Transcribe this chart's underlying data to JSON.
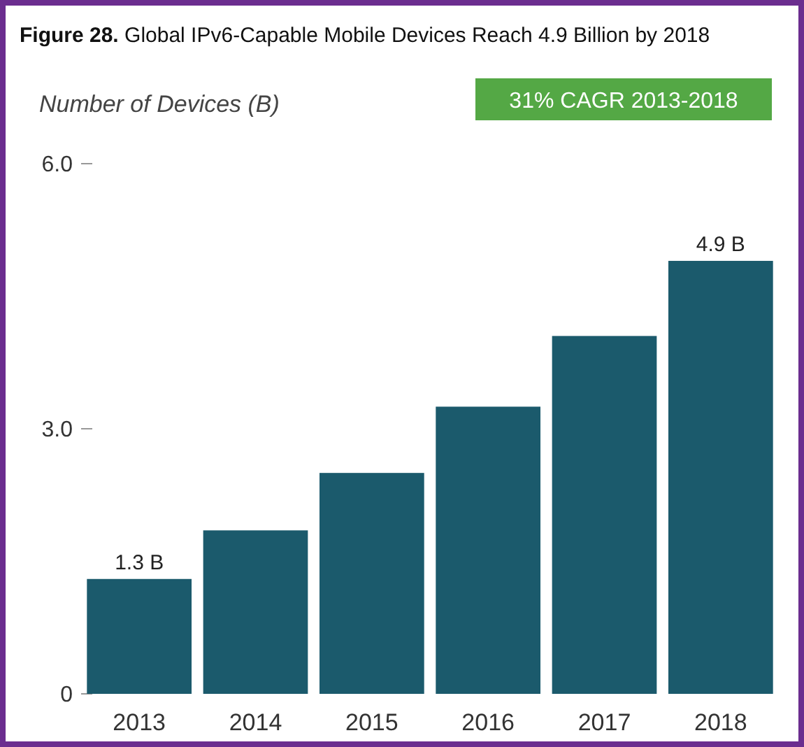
{
  "chart_data": {
    "type": "bar",
    "title": "Figure 28. Global IPv6-Capable Mobile Devices Reach 4.9 Billion by 2018",
    "ylabel": "Number of Devices (B)",
    "annotations": [
      "31% CAGR 2013-2018"
    ],
    "categories": [
      "2013",
      "2014",
      "2015",
      "2016",
      "2017",
      "2018"
    ],
    "values": [
      1.3,
      1.85,
      2.5,
      3.25,
      4.05,
      4.9
    ],
    "value_labels": [
      "1.3 B",
      null,
      null,
      null,
      null,
      "4.9 B"
    ],
    "color": "#1b5a6c",
    "ylim": [
      0,
      6
    ],
    "yticks": [
      {
        "value": 0,
        "label": "0"
      },
      {
        "value": 3,
        "label": "3.0"
      },
      {
        "value": 6,
        "label": "6.0"
      }
    ],
    "grid": false
  }
}
